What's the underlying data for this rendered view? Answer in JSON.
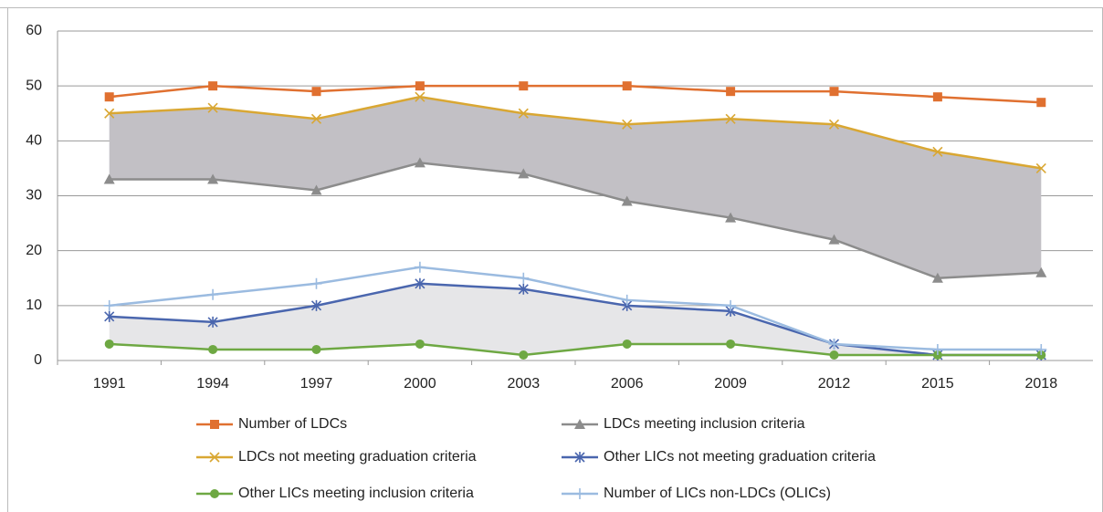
{
  "chart_data": {
    "type": "line",
    "categories": [
      "1991",
      "1994",
      "1997",
      "2000",
      "2003",
      "2006",
      "2009",
      "2012",
      "2015",
      "2018"
    ],
    "series": [
      {
        "name": "Number of LDCs",
        "color": "#e07030",
        "marker": "square",
        "values": [
          48,
          50,
          49,
          50,
          50,
          50,
          49,
          49,
          48,
          47
        ]
      },
      {
        "name": "LDCs meeting inclusion criteria",
        "color": "#8c8c8c",
        "marker": "triangle",
        "values": [
          33,
          33,
          31,
          36,
          34,
          29,
          26,
          22,
          15,
          16
        ]
      },
      {
        "name": "LDCs not meeting graduation criteria",
        "color": "#d9a733",
        "marker": "x",
        "values": [
          45,
          46,
          44,
          48,
          45,
          43,
          44,
          43,
          38,
          35
        ]
      },
      {
        "name": "Other LICs not meeting graduation criteria",
        "color": "#4a66ae",
        "marker": "asterisk",
        "values": [
          8,
          7,
          10,
          14,
          13,
          10,
          9,
          3,
          1,
          1
        ]
      },
      {
        "name": "Other LICs meeting inclusion criteria",
        "color": "#6ea843",
        "marker": "circle",
        "values": [
          3,
          2,
          2,
          3,
          1,
          3,
          3,
          1,
          1,
          1
        ]
      },
      {
        "name": "Number of LICs non-LDCs (OLICs)",
        "color": "#9bbbe0",
        "marker": "plus",
        "values": [
          10,
          12,
          14,
          17,
          15,
          11,
          10,
          3,
          2,
          2
        ]
      }
    ],
    "shaded_between": [
      {
        "series": [
          2,
          1
        ],
        "color": "#c2c0c5"
      },
      {
        "series": [
          3,
          4
        ],
        "color": "#e6e6e8"
      }
    ],
    "ylim": [
      0,
      60
    ],
    "yticks": [
      0,
      10,
      20,
      30,
      40,
      50,
      60
    ],
    "grid": true,
    "legend": "bottom"
  }
}
